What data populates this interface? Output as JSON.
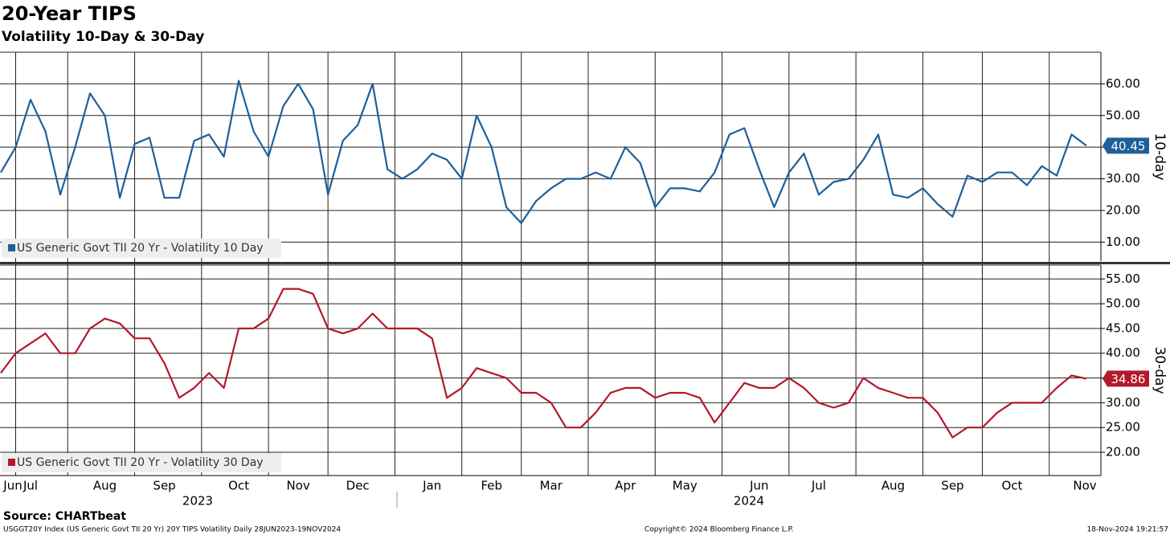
{
  "header": {
    "title": "20-Year TIPS",
    "subtitle": "Volatility 10-Day & 30-Day"
  },
  "chart_data": [
    {
      "type": "line",
      "axis_label": "10-day",
      "ylim": [
        4,
        70
      ],
      "yticks": [
        {
          "value": 10,
          "label": "10.00"
        },
        {
          "value": 20,
          "label": "20.00"
        },
        {
          "value": 30,
          "label": "30.00"
        },
        {
          "value": 40,
          "label": "40.00"
        },
        {
          "value": 50,
          "label": "50.00"
        },
        {
          "value": 60,
          "label": "60.00"
        }
      ],
      "grid": true,
      "legend": "lower left",
      "series": [
        {
          "name": "US Generic Govt TII 20 Yr - Volatility 10 Day",
          "color": "#1f5f99",
          "values": [
            32,
            40,
            55,
            45,
            25,
            40,
            57,
            50,
            24,
            41,
            43,
            24,
            24,
            42,
            44,
            37,
            61,
            45,
            37,
            53,
            60,
            52,
            25,
            42,
            47,
            60,
            33,
            30,
            33,
            38,
            36,
            30,
            50,
            40,
            21,
            16,
            23,
            27,
            30,
            30,
            32,
            30,
            40,
            35,
            21,
            27,
            27,
            26,
            32,
            44,
            46,
            33,
            21,
            32,
            38,
            25,
            29,
            30,
            36,
            44,
            25,
            24,
            27,
            22,
            18,
            31,
            29,
            32,
            32,
            28,
            34,
            31,
            44,
            40.45
          ]
        }
      ]
    },
    {
      "type": "line",
      "axis_label": "30-day",
      "ylim": [
        15.3,
        57.8
      ],
      "yticks": [
        {
          "value": 20,
          "label": "20.00"
        },
        {
          "value": 25,
          "label": "25.00"
        },
        {
          "value": 30,
          "label": "30.00"
        },
        {
          "value": 35,
          "label": "35.00"
        },
        {
          "value": 40,
          "label": "40.00"
        },
        {
          "value": 45,
          "label": "45.00"
        },
        {
          "value": 50,
          "label": "50.00"
        },
        {
          "value": 55,
          "label": "55.00"
        }
      ],
      "grid": true,
      "legend": "lower left",
      "categories": [
        "Jun",
        null,
        "Jul",
        null,
        null,
        null,
        null,
        "Aug",
        null,
        null,
        null,
        "Sep",
        null,
        null,
        null,
        null,
        "Oct",
        null,
        null,
        null,
        "Nov",
        null,
        null,
        null,
        "Dec",
        null,
        null,
        null,
        null,
        "Jan",
        null,
        null,
        null,
        "Feb",
        null,
        null,
        null,
        "Mar",
        null,
        null,
        null,
        null,
        "Apr",
        null,
        null,
        null,
        "May",
        null,
        null,
        null,
        null,
        "Jun",
        null,
        null,
        null,
        "Jul",
        null,
        null,
        null,
        null,
        "Aug",
        null,
        null,
        null,
        "Sep",
        null,
        null,
        null,
        "Oct",
        null,
        null,
        null,
        null,
        "Nov"
      ],
      "year_labels": [
        "2023",
        "2024"
      ],
      "series": [
        {
          "name": "US Generic Govt TII 20 Yr - Volatility 30 Day",
          "color": "#b3182b",
          "values": [
            36,
            40,
            42,
            44,
            40,
            40,
            45,
            47,
            46,
            43,
            43,
            38,
            31,
            33,
            36,
            33,
            45,
            45,
            47,
            53,
            53,
            52,
            45,
            44,
            45,
            48,
            45,
            45,
            45,
            43,
            31,
            33,
            37,
            36,
            35,
            32,
            32,
            30,
            25,
            25,
            28,
            32,
            33,
            33,
            31,
            32,
            32,
            31,
            26,
            30,
            34,
            33,
            33,
            35,
            33,
            30,
            29,
            30,
            35,
            33,
            32,
            31,
            31,
            28,
            23,
            25,
            25,
            28,
            30,
            30,
            30,
            33,
            35.5,
            34.86
          ]
        }
      ]
    }
  ],
  "footer": {
    "source": "Source: CHARTbeat",
    "description": "USGGT20Y Index (US Generic Govt TII 20 Yr) 20Y TIPS Volatility  Daily 28JUN2023-19NOV2024",
    "copyright": "Copyright© 2024 Bloomberg Finance L.P.",
    "timestamp": "18-Nov-2024 19:21:57"
  }
}
